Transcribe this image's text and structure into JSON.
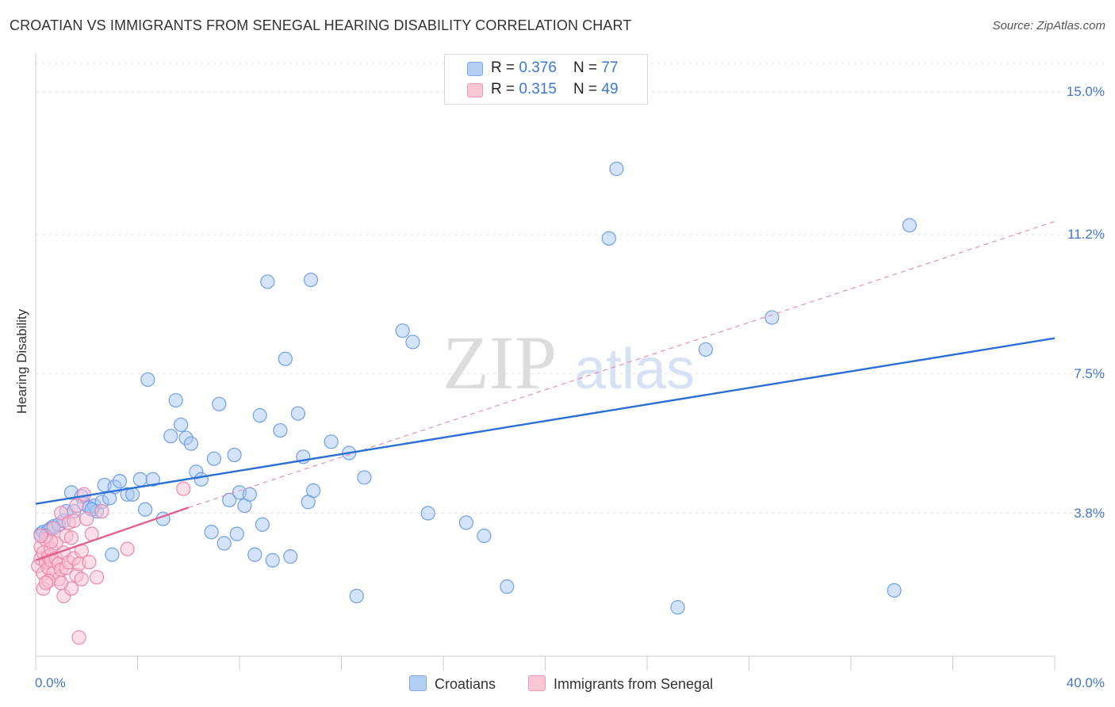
{
  "chart_data": {
    "type": "scatter",
    "title": "CROATIAN VS IMMIGRANTS FROM SENEGAL HEARING DISABILITY CORRELATION CHART",
    "source": "Source: ZipAtlas.com",
    "ylabel": "Hearing Disability",
    "xlim": [
      0,
      40
    ],
    "ylim": [
      0,
      15.75
    ],
    "x_tick_labels": {
      "min": "0.0%",
      "max": "40.0%"
    },
    "y_ticks": [
      {
        "value": 3.8,
        "label": "3.8%"
      },
      {
        "value": 7.5,
        "label": "7.5%"
      },
      {
        "value": 11.2,
        "label": "11.2%"
      },
      {
        "value": 15.0,
        "label": "15.0%"
      }
    ],
    "legend": [
      {
        "r_label": "R = ",
        "r_value": "0.376",
        "n_label": "N = ",
        "n_value": "77"
      },
      {
        "r_label": "R = ",
        "r_value": "0.315",
        "n_label": "N = ",
        "n_value": "49"
      }
    ],
    "series": [
      {
        "name": "Croatians",
        "color": "#6fa0e8",
        "fill": "#a9c8f2",
        "trend": {
          "x0": 0,
          "y0": 4.05,
          "x1": 40,
          "y1": 8.45,
          "color": "#2a6fd4",
          "style": "solid"
        },
        "points": [
          [
            0.2,
            3.25
          ],
          [
            0.3,
            3.3
          ],
          [
            0.5,
            3.35
          ],
          [
            0.6,
            3.4
          ],
          [
            0.7,
            3.45
          ],
          [
            0.9,
            3.5
          ],
          [
            1.1,
            3.6
          ],
          [
            1.2,
            3.85
          ],
          [
            1.4,
            4.35
          ],
          [
            1.5,
            3.85
          ],
          [
            1.8,
            4.25
          ],
          [
            1.9,
            4.05
          ],
          [
            2.1,
            3.95
          ],
          [
            2.3,
            4.0
          ],
          [
            2.4,
            3.85
          ],
          [
            2.6,
            4.1
          ],
          [
            2.7,
            4.55
          ],
          [
            2.9,
            4.2
          ],
          [
            3.1,
            4.5
          ],
          [
            3.3,
            4.65
          ],
          [
            3.6,
            4.3
          ],
          [
            3.8,
            4.3
          ],
          [
            4.1,
            4.7
          ],
          [
            4.3,
            3.9
          ],
          [
            4.6,
            4.7
          ],
          [
            5.0,
            3.65
          ],
          [
            4.4,
            7.35
          ],
          [
            5.5,
            6.8
          ],
          [
            5.7,
            6.15
          ],
          [
            5.9,
            5.8
          ],
          [
            6.1,
            5.65
          ],
          [
            6.3,
            4.9
          ],
          [
            6.5,
            4.7
          ],
          [
            5.3,
            5.85
          ],
          [
            6.9,
            3.3
          ],
          [
            7.0,
            5.25
          ],
          [
            7.2,
            6.7
          ],
          [
            7.4,
            3.0
          ],
          [
            7.6,
            4.15
          ],
          [
            7.8,
            5.35
          ],
          [
            7.9,
            3.25
          ],
          [
            8.0,
            4.35
          ],
          [
            8.2,
            4.0
          ],
          [
            8.4,
            4.3
          ],
          [
            8.6,
            2.7
          ],
          [
            8.8,
            6.4
          ],
          [
            8.9,
            3.5
          ],
          [
            9.3,
            2.55
          ],
          [
            9.6,
            6.0
          ],
          [
            9.1,
            9.95
          ],
          [
            9.8,
            7.9
          ],
          [
            10.0,
            2.65
          ],
          [
            10.3,
            6.45
          ],
          [
            10.5,
            5.3
          ],
          [
            10.7,
            4.1
          ],
          [
            10.9,
            4.4
          ],
          [
            10.8,
            10.0
          ],
          [
            11.6,
            5.7
          ],
          [
            12.3,
            5.4
          ],
          [
            12.6,
            1.6
          ],
          [
            12.9,
            4.75
          ],
          [
            3.0,
            2.7
          ],
          [
            14.4,
            8.65
          ],
          [
            14.8,
            8.35
          ],
          [
            15.4,
            3.8
          ],
          [
            16.9,
            3.55
          ],
          [
            17.6,
            3.2
          ],
          [
            18.5,
            1.85
          ],
          [
            22.5,
            11.1
          ],
          [
            22.8,
            12.95
          ],
          [
            25.2,
            1.3
          ],
          [
            26.3,
            8.15
          ],
          [
            28.9,
            9.0
          ],
          [
            33.7,
            1.75
          ],
          [
            34.3,
            11.45
          ],
          [
            0.4,
            3.2
          ],
          [
            2.2,
            3.9
          ]
        ]
      },
      {
        "name": "Immigrants from Senegal",
        "color": "#ee88aa",
        "fill": "#f8c0d2",
        "trend": {
          "x0": 0,
          "y0": 2.55,
          "x1": 6.0,
          "y1": 3.95,
          "color": "#e06090",
          "style": "solid"
        },
        "trend_extension": {
          "x0": 6.0,
          "y0": 3.95,
          "x1": 40,
          "y1": 11.55,
          "color": "#e890ad",
          "style": "dashed"
        },
        "points": [
          [
            0.1,
            2.4
          ],
          [
            0.2,
            2.6
          ],
          [
            0.2,
            2.9
          ],
          [
            0.3,
            2.2
          ],
          [
            0.3,
            2.75
          ],
          [
            0.4,
            2.5
          ],
          [
            0.4,
            3.1
          ],
          [
            0.5,
            2.35
          ],
          [
            0.5,
            2.65
          ],
          [
            0.6,
            2.85
          ],
          [
            0.6,
            2.55
          ],
          [
            0.7,
            3.4
          ],
          [
            0.7,
            2.2
          ],
          [
            0.8,
            2.6
          ],
          [
            0.8,
            3.0
          ],
          [
            0.9,
            2.45
          ],
          [
            0.9,
            2.05
          ],
          [
            1.0,
            2.3
          ],
          [
            1.0,
            3.8
          ],
          [
            1.1,
            2.75
          ],
          [
            1.1,
            1.6
          ],
          [
            1.2,
            2.35
          ],
          [
            1.2,
            3.2
          ],
          [
            1.3,
            3.55
          ],
          [
            1.3,
            2.5
          ],
          [
            1.4,
            1.8
          ],
          [
            1.5,
            3.6
          ],
          [
            1.5,
            2.6
          ],
          [
            1.6,
            2.15
          ],
          [
            1.7,
            2.45
          ],
          [
            1.8,
            2.05
          ],
          [
            1.9,
            4.3
          ],
          [
            2.0,
            3.65
          ],
          [
            2.1,
            2.5
          ],
          [
            2.2,
            3.25
          ],
          [
            2.4,
            2.1
          ],
          [
            2.6,
            3.85
          ],
          [
            3.6,
            2.85
          ],
          [
            5.8,
            4.45
          ],
          [
            1.7,
            0.5
          ],
          [
            0.3,
            1.8
          ],
          [
            0.6,
            3.05
          ],
          [
            1.0,
            1.95
          ],
          [
            1.4,
            3.15
          ],
          [
            0.5,
            2.0
          ],
          [
            0.2,
            3.2
          ],
          [
            1.8,
            2.8
          ],
          [
            0.4,
            1.95
          ],
          [
            1.6,
            4.0
          ]
        ]
      }
    ],
    "watermark": {
      "part1": "ZIP",
      "part2": "atlas"
    }
  },
  "bottom_legend": [
    "Croatians",
    "Immigrants from Senegal"
  ]
}
